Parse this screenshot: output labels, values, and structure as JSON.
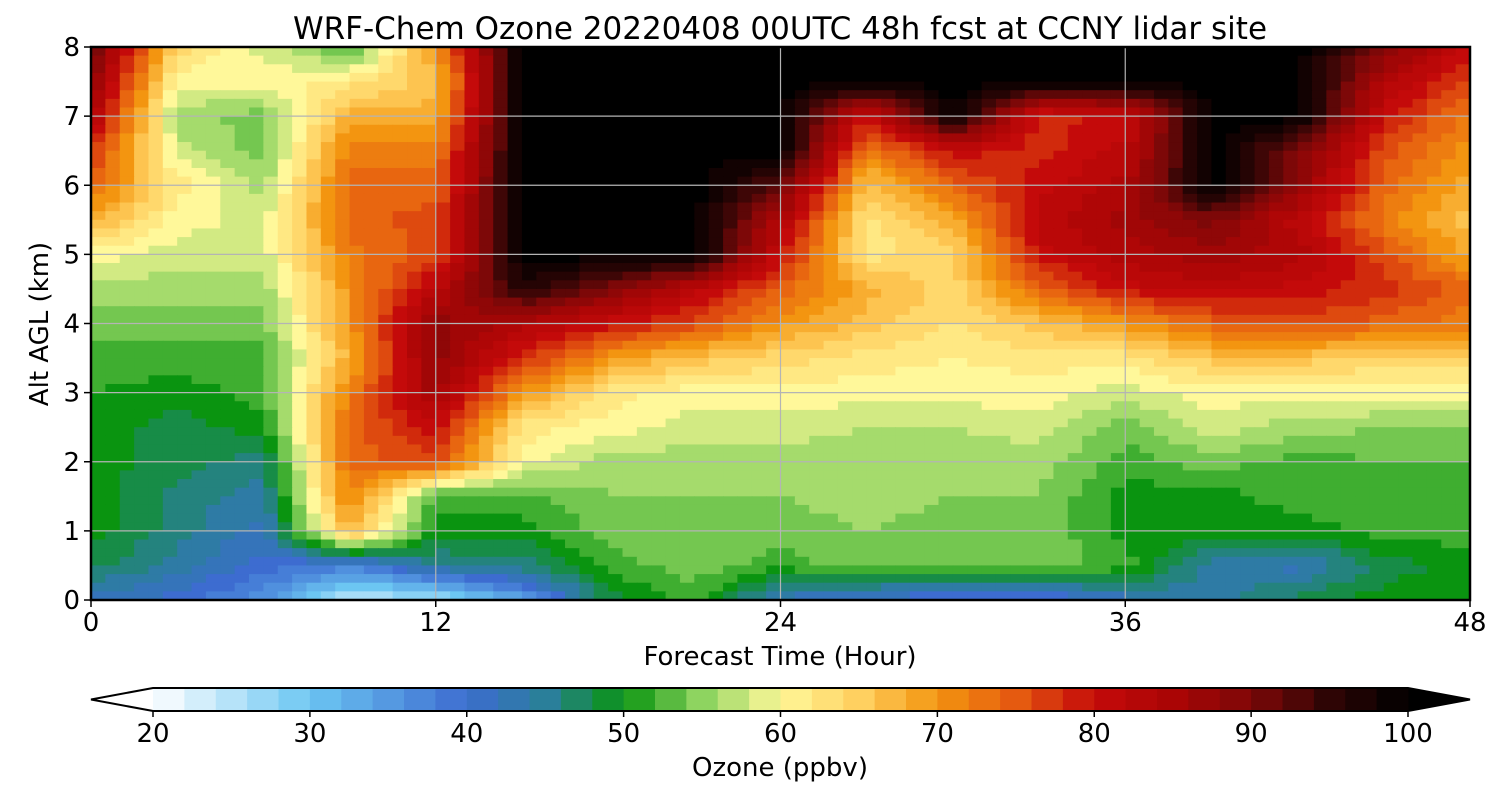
{
  "chart_data": {
    "type": "heatmap",
    "title": "WRF-Chem Ozone  20220408 00UTC 48h fcst at CCNY lidar site",
    "xlabel": "Forecast Time (Hour)",
    "ylabel": "Alt AGL (km)",
    "xlim": [
      0,
      48
    ],
    "ylim": [
      0,
      8
    ],
    "x_ticks": [
      0,
      12,
      24,
      36,
      48
    ],
    "y_ticks": [
      0,
      1,
      2,
      3,
      4,
      5,
      6,
      7,
      8
    ],
    "grid": true,
    "colorbar": {
      "label": "Ozone  (ppbv)",
      "min": 20,
      "max": 100,
      "ticks": [
        20,
        30,
        40,
        50,
        60,
        70,
        80,
        90,
        100
      ],
      "extend": "both",
      "under_color": "#ffffff",
      "over_color": "#000000",
      "stops": [
        {
          "v": 20,
          "c": "#ffffff"
        },
        {
          "v": 30,
          "c": "#6cc6f2"
        },
        {
          "v": 40,
          "c": "#3d6cd0"
        },
        {
          "v": 45,
          "c": "#2a7f9a"
        },
        {
          "v": 50,
          "c": "#0a9410"
        },
        {
          "v": 55,
          "c": "#8ed460"
        },
        {
          "v": 60,
          "c": "#fff89a"
        },
        {
          "v": 65,
          "c": "#ffd060"
        },
        {
          "v": 70,
          "c": "#f39510"
        },
        {
          "v": 75,
          "c": "#e55a10"
        },
        {
          "v": 80,
          "c": "#c40a0a"
        },
        {
          "v": 85,
          "c": "#aa0505"
        },
        {
          "v": 90,
          "c": "#7d0808"
        },
        {
          "v": 95,
          "c": "#2e0505"
        },
        {
          "v": 100,
          "c": "#000000"
        }
      ]
    },
    "z_altitudes_km": [
      0,
      0.5,
      1,
      1.5,
      2,
      2.5,
      3,
      3.5,
      4,
      4.5,
      5,
      5.5,
      6,
      6.5,
      7,
      7.5,
      8
    ],
    "z_times_h": [
      0,
      3,
      6,
      9,
      12,
      15,
      18,
      21,
      24,
      27,
      30,
      33,
      36,
      39,
      42,
      45,
      48
    ],
    "z_values_ppbv": [
      [
        42,
        40,
        36,
        24,
        26,
        34,
        48,
        52,
        42,
        40,
        38,
        38,
        42,
        44,
        48,
        50,
        50
      ],
      [
        48,
        44,
        40,
        38,
        45,
        46,
        52,
        54,
        52,
        54,
        54,
        54,
        52,
        44,
        42,
        48,
        50
      ],
      [
        50,
        46,
        42,
        68,
        50,
        50,
        54,
        55,
        54,
        55,
        54,
        55,
        50,
        50,
        50,
        52,
        52
      ],
      [
        50,
        46,
        44,
        72,
        52,
        52,
        55,
        55,
        55,
        56,
        55,
        55,
        50,
        50,
        52,
        52,
        52
      ],
      [
        50,
        48,
        46,
        74,
        76,
        60,
        56,
        56,
        56,
        56,
        56,
        56,
        52,
        54,
        52,
        53,
        53
      ],
      [
        50,
        48,
        50,
        74,
        80,
        62,
        60,
        58,
        58,
        57,
        57,
        58,
        54,
        58,
        56,
        55,
        55
      ],
      [
        51,
        50,
        52,
        72,
        86,
        70,
        62,
        60,
        60,
        60,
        60,
        60,
        58,
        60,
        60,
        60,
        60
      ],
      [
        52,
        52,
        52,
        68,
        88,
        78,
        70,
        66,
        64,
        62,
        61,
        62,
        62,
        66,
        66,
        64,
        64
      ],
      [
        54,
        54,
        54,
        70,
        88,
        84,
        80,
        76,
        70,
        66,
        63,
        66,
        70,
        74,
        76,
        74,
        72
      ],
      [
        56,
        56,
        56,
        70,
        82,
        96,
        90,
        82,
        74,
        68,
        64,
        74,
        80,
        82,
        80,
        78,
        74
      ],
      [
        60,
        58,
        58,
        72,
        76,
        100,
        100,
        100,
        80,
        62,
        64,
        80,
        84,
        86,
        84,
        76,
        68
      ],
      [
        68,
        60,
        58,
        74,
        76,
        100,
        100,
        100,
        84,
        62,
        68,
        82,
        86,
        90,
        82,
        72,
        66
      ],
      [
        74,
        62,
        56,
        74,
        74,
        100,
        100,
        100,
        92,
        66,
        74,
        80,
        84,
        100,
        88,
        74,
        68
      ],
      [
        78,
        58,
        54,
        72,
        72,
        100,
        100,
        100,
        100,
        72,
        80,
        78,
        82,
        100,
        90,
        76,
        70
      ],
      [
        84,
        56,
        54,
        68,
        68,
        100,
        100,
        100,
        100,
        80,
        100,
        78,
        80,
        100,
        100,
        80,
        72
      ],
      [
        88,
        60,
        60,
        62,
        66,
        100,
        100,
        100,
        100,
        100,
        100,
        100,
        100,
        100,
        100,
        84,
        76
      ],
      [
        92,
        64,
        58,
        52,
        70,
        100,
        100,
        100,
        100,
        100,
        100,
        100,
        100,
        100,
        100,
        90,
        80
      ]
    ]
  }
}
